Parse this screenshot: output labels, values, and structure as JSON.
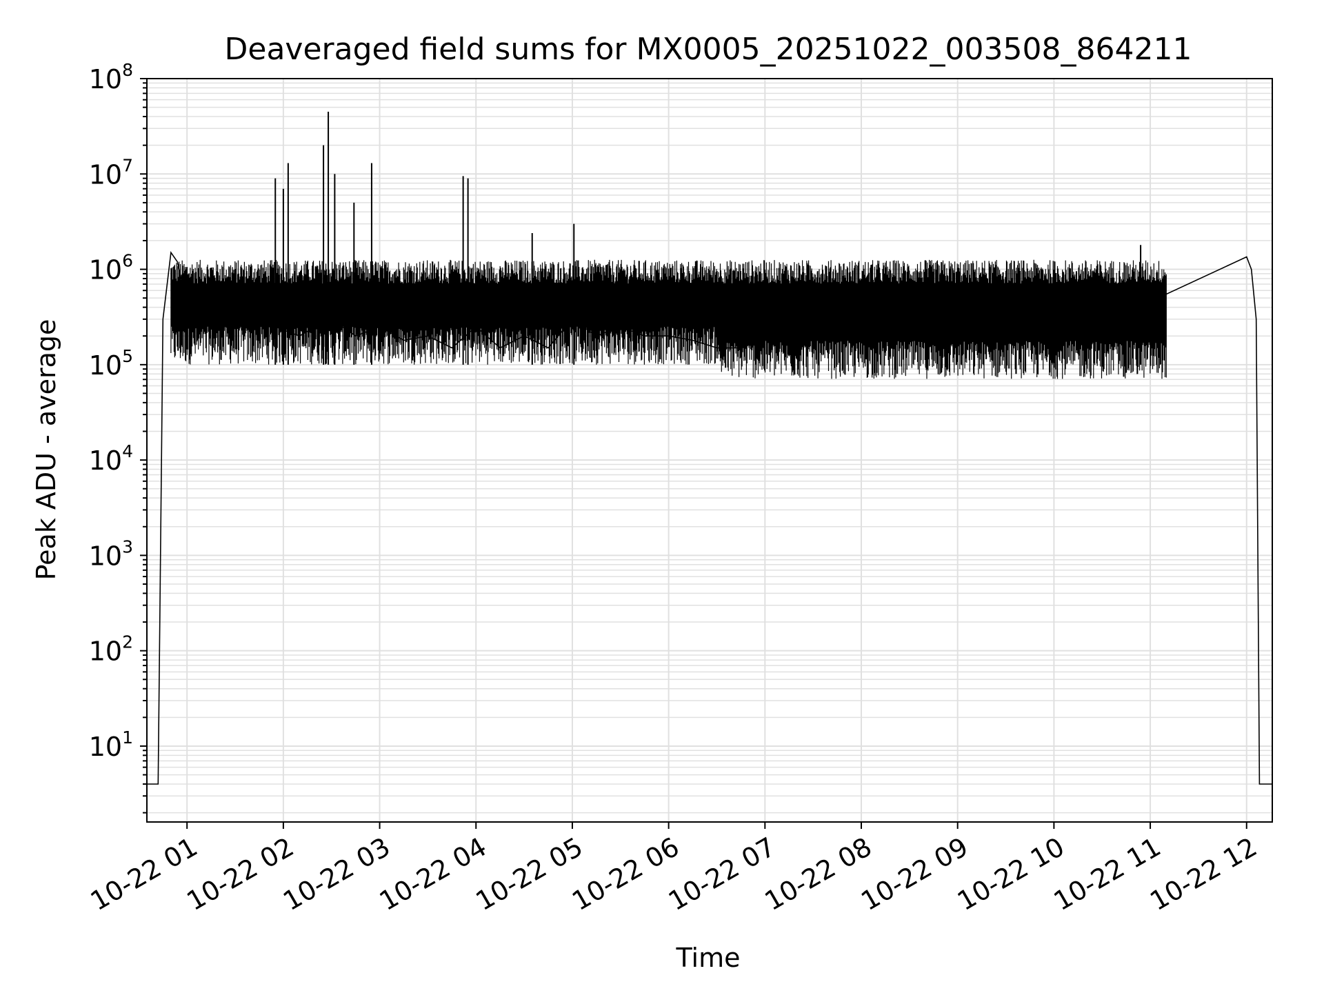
{
  "chart_data": {
    "type": "line",
    "title": "Deaveraged field sums for MX0005_20251022_003508_864211",
    "xlabel": "Time",
    "ylabel": "Peak ADU - average",
    "x_scale": "time",
    "y_scale": "log",
    "xlim": [
      "2025-10-22 00:35",
      "2025-10-22 12:16"
    ],
    "ylim": [
      1.6,
      100000000
    ],
    "x_tick_labels": [
      "10-22 01",
      "10-22 02",
      "10-22 03",
      "10-22 04",
      "10-22 05",
      "10-22 06",
      "10-22 07",
      "10-22 08",
      "10-22 09",
      "10-22 10",
      "10-22 11",
      "10-22 12"
    ],
    "y_tick_labels": [
      {
        "base": "10",
        "exp": "1"
      },
      {
        "base": "10",
        "exp": "2"
      },
      {
        "base": "10",
        "exp": "3"
      },
      {
        "base": "10",
        "exp": "4"
      },
      {
        "base": "10",
        "exp": "5"
      },
      {
        "base": "10",
        "exp": "6"
      },
      {
        "base": "10",
        "exp": "7"
      },
      {
        "base": "10",
        "exp": "8"
      }
    ],
    "grid": true,
    "line_color": "#000000",
    "grid_color": "#e0e0e0",
    "series": [
      {
        "x": [
          "2025-10-22 00:35",
          "2025-10-22 00:42",
          "2025-10-22 00:45",
          "2025-10-22 00:50",
          "2025-10-22 00:54",
          "2025-10-22 00:58",
          "2025-10-22 01:05",
          "2025-10-22 01:12",
          "2025-10-22 01:20",
          "2025-10-22 01:30",
          "2025-10-22 01:40",
          "2025-10-22 01:55",
          "2025-10-22 02:10",
          "2025-10-22 02:20",
          "2025-10-22 02:30",
          "2025-10-22 02:45",
          "2025-10-22 03:00",
          "2025-10-22 03:15",
          "2025-10-22 03:30",
          "2025-10-22 03:45",
          "2025-10-22 04:00",
          "2025-10-22 04:15",
          "2025-10-22 04:30",
          "2025-10-22 04:45",
          "2025-10-22 05:00",
          "2025-10-22 05:15",
          "2025-10-22 05:30",
          "2025-10-22 05:45",
          "2025-10-22 06:00",
          "2025-10-22 06:15",
          "2025-10-22 06:30",
          "2025-10-22 06:45",
          "2025-10-22 07:00",
          "2025-10-22 07:15",
          "2025-10-22 07:30",
          "2025-10-22 07:45",
          "2025-10-22 08:00",
          "2025-10-22 08:15",
          "2025-10-22 08:30",
          "2025-10-22 08:45",
          "2025-10-22 09:00",
          "2025-10-22 09:15",
          "2025-10-22 09:30",
          "2025-10-22 09:45",
          "2025-10-22 10:00",
          "2025-10-22 10:15",
          "2025-10-22 10:30",
          "2025-10-22 10:45",
          "2025-10-22 11:00",
          "2025-10-22 11:10",
          "2025-10-22 11:10",
          "2025-10-22 12:00",
          "2025-10-22 12:03",
          "2025-10-22 12:06",
          "2025-10-22 12:08",
          "2025-10-22 12:16"
        ],
        "y": [
          4,
          4,
          300000,
          1500000,
          1200000,
          600000,
          700000,
          450000,
          600000,
          350000,
          300000,
          250000,
          200000,
          250000,
          300000,
          200000,
          250000,
          180000,
          200000,
          150000,
          250000,
          150000,
          200000,
          150000,
          300000,
          200000,
          250000,
          200000,
          200000,
          180000,
          150000,
          150000,
          400000,
          250000,
          300000,
          300000,
          350000,
          300000,
          400000,
          350000,
          400000,
          300000,
          350000,
          300000,
          400000,
          350000,
          300000,
          350000,
          400000,
          550000,
          550000,
          1350000,
          1000000,
          300000,
          4,
          4
        ]
      }
    ],
    "spikes": {
      "x": [
        "2025-10-22 01:55",
        "2025-10-22 02:00",
        "2025-10-22 02:03",
        "2025-10-22 02:25",
        "2025-10-22 02:28",
        "2025-10-22 02:32",
        "2025-10-22 02:44",
        "2025-10-22 02:55",
        "2025-10-22 03:52",
        "2025-10-22 03:55",
        "2025-10-22 04:35",
        "2025-10-22 05:01",
        "2025-10-22 10:54"
      ],
      "y": [
        9000000,
        7000000,
        13000000,
        20000000,
        45000000,
        10000000,
        5000000,
        13000000,
        9500000,
        9000000,
        2400000,
        3000000,
        1800000
      ]
    }
  }
}
